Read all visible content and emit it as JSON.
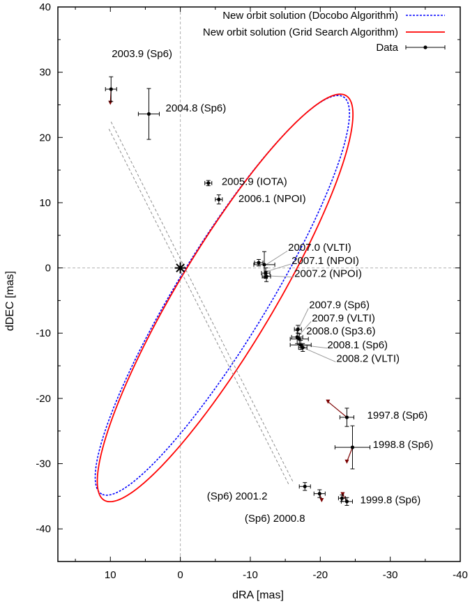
{
  "chart_data": {
    "type": "scatter",
    "xlabel": "dRA [mas]",
    "ylabel": "dDEC [mas]",
    "xlim": [
      17.5,
      -40
    ],
    "ylim": [
      -45,
      40
    ],
    "x_ticks": [
      "10",
      "0",
      "-10",
      "-20",
      "-30",
      "-40"
    ],
    "y_ticks": [
      "40",
      "30",
      "20",
      "10",
      "0",
      "-10",
      "-20",
      "-30",
      "-40"
    ],
    "grid": "dashed zero lines only",
    "legend_position": "top-right",
    "legend": [
      {
        "label": "New orbit solution (Docobo Algorithm)",
        "color": "#0000ff",
        "style": "dashed"
      },
      {
        "label": "New orbit solution (Grid Search Algorithm)",
        "color": "#ff0000",
        "style": "solid"
      },
      {
        "label": "Data",
        "color": "#000000",
        "style": "points with error bars"
      }
    ],
    "orbits": [
      {
        "name": "New orbit solution (Docobo Algorithm)",
        "center": [
          -6.0,
          -4.2
        ],
        "semi_axis_a": 35.0,
        "semi_axis_b": 6.6,
        "tilt_deg": -60.5
      },
      {
        "name": "New orbit solution (Grid Search Algorithm)",
        "center": [
          -6.4,
          -4.6
        ],
        "semi_axis_a": 35.5,
        "semi_axis_b": 7.0,
        "tilt_deg": -61.0
      }
    ],
    "star_position": [
      0,
      0
    ],
    "series": [
      {
        "name": "Data",
        "points": [
          {
            "x": 9.9,
            "y": 27.4,
            "xerr": 0.8,
            "yerr": 1.9,
            "label": "2003.9 (Sp6)"
          },
          {
            "x": 4.5,
            "y": 23.6,
            "xerr": 1.5,
            "yerr": 3.9,
            "label": "2004.8 (Sp6)"
          },
          {
            "x": -4.0,
            "y": 13.0,
            "xerr": 0.5,
            "yerr": 0.4,
            "label": "2005.9 (IOTA)"
          },
          {
            "x": -5.5,
            "y": 10.5,
            "xerr": 0.5,
            "yerr": 0.7,
            "label": "2006.1 (NPOI)"
          },
          {
            "x": -11.2,
            "y": 0.8,
            "xerr": 0.6,
            "yerr": 0.5,
            "label": ""
          },
          {
            "x": -12.0,
            "y": 0.5,
            "xerr": 1.5,
            "yerr": 2.0,
            "label": "2007.0 (VLTI)"
          },
          {
            "x": -12.2,
            "y": -0.8,
            "xerr": 0.6,
            "yerr": 0.8,
            "label": "2007.1 (NPOI)"
          },
          {
            "x": -12.3,
            "y": -1.3,
            "xerr": 0.6,
            "yerr": 0.8,
            "label": "2007.2 (NPOI)"
          },
          {
            "x": -16.8,
            "y": -9.4,
            "xerr": 0.5,
            "yerr": 0.6,
            "label": "2007.9 (Sp6)"
          },
          {
            "x": -16.7,
            "y": -10.6,
            "xerr": 0.8,
            "yerr": 1.0,
            "label": "2007.9 (VLTI)"
          },
          {
            "x": -17.0,
            "y": -10.9,
            "xerr": 1.3,
            "yerr": 0.8,
            "label": "2008.0 (Sp3.6)"
          },
          {
            "x": -17.2,
            "y": -11.8,
            "xerr": 1.5,
            "yerr": 0.7,
            "label": "2008.1 (Sp6)"
          },
          {
            "x": -17.5,
            "y": -12.2,
            "xerr": 0.6,
            "yerr": 0.6,
            "label": "2008.2 (VLTI)"
          },
          {
            "x": -23.8,
            "y": -22.9,
            "xerr": 1.0,
            "yerr": 1.4,
            "label": "1997.8 (Sp6)"
          },
          {
            "x": -24.6,
            "y": -27.5,
            "xerr": 2.5,
            "yerr": 3.3,
            "label": "1998.8 (Sp6)"
          },
          {
            "x": -23.8,
            "y": -35.8,
            "xerr": 0.8,
            "yerr": 0.6,
            "label": "1999.8 (Sp6)"
          },
          {
            "x": -23.1,
            "y": -35.3,
            "xerr": 0.5,
            "yerr": 0.5,
            "label": ""
          },
          {
            "x": -19.9,
            "y": -34.6,
            "xerr": 0.8,
            "yerr": 0.6,
            "label": "(Sp6) 2000.8"
          },
          {
            "x": -17.8,
            "y": -33.5,
            "xerr": 0.8,
            "yerr": 0.6,
            "label": "(Sp6) 2001.2"
          }
        ]
      }
    ],
    "annotations": [
      {
        "text": "2003.9 (Sp6)",
        "x": 9.8,
        "y": 32.3,
        "leader": false
      },
      {
        "text": "2004.8 (Sp6)",
        "x": 2.1,
        "y": 24.0,
        "leader": false
      },
      {
        "text": "2005.9 (IOTA)",
        "x": -5.9,
        "y": 12.7,
        "leader": false
      },
      {
        "text": "2006.1 (NPOI)",
        "x": -8.3,
        "y": 10.1,
        "leader": false
      },
      {
        "text": "2007.0 (VLTI)",
        "x": -15.4,
        "y": 2.6,
        "leader": true
      },
      {
        "text": "2007.1 (NPOI)",
        "x": -15.9,
        "y": 0.6,
        "leader": true
      },
      {
        "text": "2007.2 (NPOI)",
        "x": -16.3,
        "y": -1.4,
        "leader": true
      },
      {
        "text": "2007.9 (Sp6)",
        "x": -18.4,
        "y": -6.2,
        "leader": true
      },
      {
        "text": "2007.9 (VLTI)",
        "x": -18.8,
        "y": -8.2,
        "leader": true
      },
      {
        "text": "2008.0 (Sp3.6)",
        "x": -18.0,
        "y": -10.2,
        "leader": true
      },
      {
        "text": "2008.1 (Sp6)",
        "x": -21.0,
        "y": -12.3,
        "leader": true
      },
      {
        "text": "2008.2 (VLTI)",
        "x": -22.3,
        "y": -14.4,
        "leader": true
      },
      {
        "text": "1997.8 (Sp6)",
        "x": -26.7,
        "y": -23.1,
        "leader": false
      },
      {
        "text": "1998.8 (Sp6)",
        "x": -27.5,
        "y": -27.6,
        "leader": false
      },
      {
        "text": "1999.8 (Sp6)",
        "x": -25.7,
        "y": -36.1,
        "leader": false
      },
      {
        "text": "(Sp6) 2001.2",
        "x": -3.8,
        "y": -35.5,
        "leader": false
      },
      {
        "text": "(Sp6) 2000.8",
        "x": -9.2,
        "y": -38.9,
        "leader": false
      }
    ]
  }
}
